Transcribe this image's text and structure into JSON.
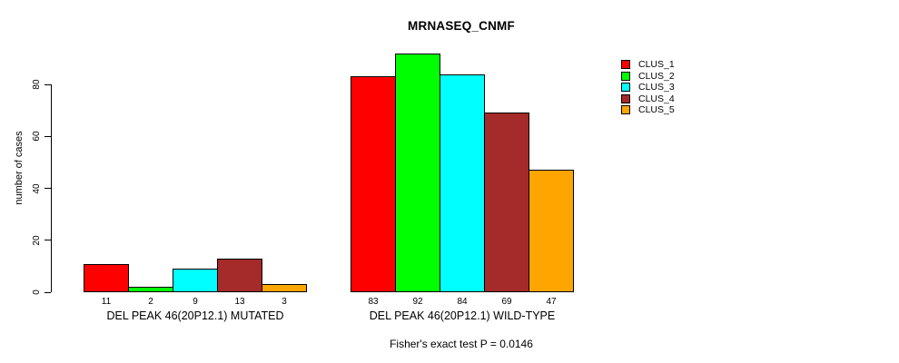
{
  "chart_data": {
    "type": "bar",
    "title": "MRNASEQ_CNMF",
    "ylabel": "number of cases",
    "caption": "Fisher's exact test P = 0.0146",
    "series": [
      "CLUS_1",
      "CLUS_2",
      "CLUS_3",
      "CLUS_4",
      "CLUS_5"
    ],
    "colors": [
      "#FF0000",
      "#00FF00",
      "#00FFFF",
      "#A52A2A",
      "#FFA500"
    ],
    "groups": [
      {
        "label": "DEL PEAK 46(20P12.1) MUTATED",
        "values": [
          11,
          2,
          9,
          13,
          3
        ]
      },
      {
        "label": "DEL PEAK 46(20P12.1) WILD-TYPE",
        "values": [
          83,
          92,
          84,
          69,
          47
        ]
      }
    ],
    "yticks": [
      0,
      20,
      40,
      60,
      80
    ],
    "ylim": [
      0,
      80
    ],
    "grid": false,
    "show_value_labels": true,
    "legend_position": "right"
  }
}
